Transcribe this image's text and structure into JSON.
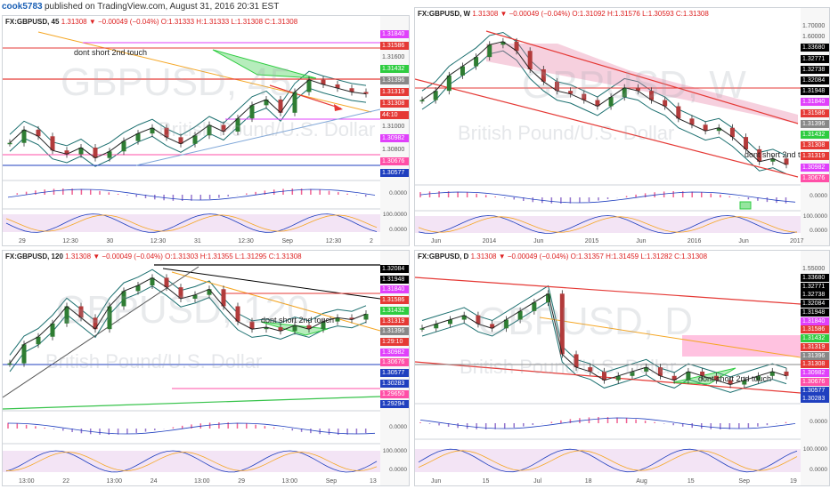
{
  "header": {
    "user": "cook5783",
    "published": "published on TradingView.com, August 31, 2016 20:31 EST"
  },
  "colors": {
    "red": "#e53935",
    "pink": "#ff4fa7",
    "magenta": "#e040fb",
    "black": "#000000",
    "green": "#2ecc40",
    "blue": "#1f3fbf",
    "lime": "#36c34a",
    "orange": "#f5a623",
    "gray": "#888888",
    "teal": "#1b6f6f"
  },
  "chart_data": [
    {
      "type": "line",
      "panel": "top-left",
      "symbol": "FX:GBPUSD, 45",
      "change": "1.31308 ▼ −0.00049 (−0.04%)",
      "ohlc": "O:1.31333 H:1.31333 L:1.31308 C:1.31308",
      "watermark": "GBPUSD, 45",
      "watermark_sub": "British Pound/U.S. Dollar",
      "annotation": "dont short 2nd touch",
      "x_ticks": [
        "29",
        "12:30",
        "30",
        "12:30",
        "31",
        "12:30",
        "Sep",
        "12:30",
        "2"
      ],
      "price_labels": [
        {
          "value": "1.31840",
          "color": "#e040fb"
        },
        {
          "value": "1.31586",
          "color": "#e53935"
        },
        {
          "value": "1.31600",
          "color": "#ffffff"
        },
        {
          "value": "1.31432",
          "color": "#2ecc40"
        },
        {
          "value": "1.31396",
          "color": "#888888"
        },
        {
          "value": "1.31319",
          "color": "#e53935"
        },
        {
          "value": "1.31308",
          "color": "#e53935"
        },
        {
          "value": "44:10",
          "color": "#e53935"
        },
        {
          "value": "1.31000",
          "color": "#ffffff"
        },
        {
          "value": "1.30982",
          "color": "#e040fb"
        },
        {
          "value": "1.30800",
          "color": "#ffffff"
        },
        {
          "value": "1.30676",
          "color": "#ff4fa7"
        },
        {
          "value": "1.30577",
          "color": "#1f3fbf"
        }
      ],
      "osc1_ticks": [
        "0.0000"
      ],
      "osc2_ticks": [
        "100.0000",
        "0.0000"
      ],
      "ylim": [
        1.304,
        1.319
      ],
      "y": [
        1.3078,
        1.3092,
        1.3085,
        1.307,
        1.3066,
        1.3073,
        1.3062,
        1.3069,
        1.308,
        1.3088,
        1.3094,
        1.3084,
        1.3077,
        1.3086,
        1.3097,
        1.309,
        1.3104,
        1.3118,
        1.3124,
        1.311,
        1.3132,
        1.3145,
        1.314,
        1.3136,
        1.3132,
        1.313
      ]
    },
    {
      "type": "line",
      "panel": "top-right",
      "symbol": "FX:GBPUSD, W",
      "change": "1.31308 ▼ −0.00049 (−0.04%)",
      "ohlc": "O:1.31092 H:1.31576 L:1.30593 C:1.31308",
      "watermark": "GBPUSD, W",
      "watermark_sub": "British Pound/U.S. Dollar",
      "annotation": "dont short 2nd t",
      "x_ticks": [
        "Jun",
        "2014",
        "Jun",
        "2015",
        "Jun",
        "2016",
        "Jun",
        "2017"
      ],
      "price_labels": [
        {
          "value": "1.70000",
          "color": "#ffffff"
        },
        {
          "value": "1.60000",
          "color": "#ffffff"
        },
        {
          "value": "1.33680",
          "color": "#000000"
        },
        {
          "value": "1.32771",
          "color": "#000000"
        },
        {
          "value": "1.32738",
          "color": "#000000"
        },
        {
          "value": "1.32084",
          "color": "#000000"
        },
        {
          "value": "1.31948",
          "color": "#000000"
        },
        {
          "value": "1.31840",
          "color": "#e040fb"
        },
        {
          "value": "1.31586",
          "color": "#e53935"
        },
        {
          "value": "1.31396",
          "color": "#888888"
        },
        {
          "value": "1.31432",
          "color": "#2ecc40"
        },
        {
          "value": "1.31308",
          "color": "#e53935"
        },
        {
          "value": "1.31319",
          "color": "#e53935"
        },
        {
          "value": "1.30982",
          "color": "#e040fb"
        },
        {
          "value": "1.30676",
          "color": "#ff4fa7"
        }
      ],
      "osc1_ticks": [
        "0.0000"
      ],
      "osc2_ticks": [
        "100.0000",
        "0.0000"
      ],
      "ylim": [
        1.25,
        1.75
      ],
      "y": [
        1.52,
        1.55,
        1.6,
        1.63,
        1.66,
        1.7,
        1.71,
        1.68,
        1.62,
        1.58,
        1.55,
        1.54,
        1.52,
        1.5,
        1.53,
        1.56,
        1.55,
        1.52,
        1.5,
        1.46,
        1.44,
        1.42,
        1.43,
        1.4,
        1.36,
        1.32,
        1.33,
        1.31
      ]
    },
    {
      "type": "line",
      "panel": "bottom-left",
      "symbol": "FX:GBPUSD, 120",
      "change": "1.31308 ▼ −0.00049 (−0.04%)",
      "ohlc": "O:1.31303 H:1.31355 L:1.31295 C:1.31308",
      "watermark": "GBPUSD, 120",
      "watermark_sub": "British Pound/U.S. Dollar",
      "annotation": "dont short 2nd touch",
      "x_ticks": [
        "13:00",
        "22",
        "13:00",
        "24",
        "13:00",
        "29",
        "13:00",
        "Sep",
        "13"
      ],
      "price_labels": [
        {
          "value": "1.32084",
          "color": "#000000"
        },
        {
          "value": "1.31948",
          "color": "#000000"
        },
        {
          "value": "1.31840",
          "color": "#e040fb"
        },
        {
          "value": "1.31586",
          "color": "#e53935"
        },
        {
          "value": "1.31432",
          "color": "#2ecc40"
        },
        {
          "value": "1.31319",
          "color": "#e53935"
        },
        {
          "value": "1.31396",
          "color": "#888888"
        },
        {
          "value": "1:29:10",
          "color": "#e53935"
        },
        {
          "value": "1.30982",
          "color": "#e040fb"
        },
        {
          "value": "1.30676",
          "color": "#ff4fa7"
        },
        {
          "value": "1.30577",
          "color": "#1f3fbf"
        },
        {
          "value": "1.30283",
          "color": "#1f3fbf"
        },
        {
          "value": "1.29650",
          "color": "#ff4fa7"
        },
        {
          "value": "1.29294",
          "color": "#1f3fbf"
        }
      ],
      "osc1_ticks": [
        "0.0000"
      ],
      "osc2_ticks": [
        "100.0000",
        "0.0000"
      ],
      "ylim": [
        1.288,
        1.324
      ],
      "y": [
        1.3,
        1.305,
        1.307,
        1.3105,
        1.315,
        1.312,
        1.309,
        1.315,
        1.319,
        1.3205,
        1.3225,
        1.32,
        1.317,
        1.318,
        1.3195,
        1.315,
        1.311,
        1.309,
        1.3095,
        1.3085,
        1.31,
        1.309,
        1.311,
        1.312,
        1.3115,
        1.313
      ]
    },
    {
      "type": "line",
      "panel": "bottom-right",
      "symbol": "FX:GBPUSD, D",
      "change": "1.31308 ▼ −0.00049 (−0.04%)",
      "ohlc": "O:1.31357 H:1.31459 L:1.31282 C:1.31308",
      "watermark": "GBPUSD, D",
      "watermark_sub": "British Pound/U.S. Dollar",
      "annotation": "dont short 2nd touch",
      "x_ticks": [
        "Jun",
        "15",
        "Jul",
        "18",
        "Aug",
        "15",
        "Sep",
        "19"
      ],
      "price_labels": [
        {
          "value": "1.55000",
          "color": "#ffffff"
        },
        {
          "value": "1.33680",
          "color": "#000000"
        },
        {
          "value": "1.32771",
          "color": "#000000"
        },
        {
          "value": "1.32738",
          "color": "#000000"
        },
        {
          "value": "1.32084",
          "color": "#000000"
        },
        {
          "value": "1.31948",
          "color": "#000000"
        },
        {
          "value": "1.31840",
          "color": "#e040fb"
        },
        {
          "value": "1.31586",
          "color": "#e53935"
        },
        {
          "value": "1.31432",
          "color": "#2ecc40"
        },
        {
          "value": "1.31319",
          "color": "#e53935"
        },
        {
          "value": "1.31396",
          "color": "#888888"
        },
        {
          "value": "1.31308",
          "color": "#e53935"
        },
        {
          "value": "1.30982",
          "color": "#e040fb"
        },
        {
          "value": "1.30676",
          "color": "#ff4fa7"
        },
        {
          "value": "1.30577",
          "color": "#1f3fbf"
        },
        {
          "value": "1.30283",
          "color": "#1f3fbf"
        }
      ],
      "osc1_ticks": [
        "0.0000"
      ],
      "osc2_ticks": [
        "100.0000",
        "0.0000"
      ],
      "ylim": [
        1.25,
        1.55
      ],
      "y": [
        1.42,
        1.43,
        1.44,
        1.45,
        1.43,
        1.42,
        1.44,
        1.46,
        1.48,
        1.5,
        1.36,
        1.33,
        1.32,
        1.3,
        1.31,
        1.32,
        1.33,
        1.31,
        1.3,
        1.32,
        1.31,
        1.3,
        1.29,
        1.3,
        1.31,
        1.32,
        1.31
      ]
    }
  ]
}
